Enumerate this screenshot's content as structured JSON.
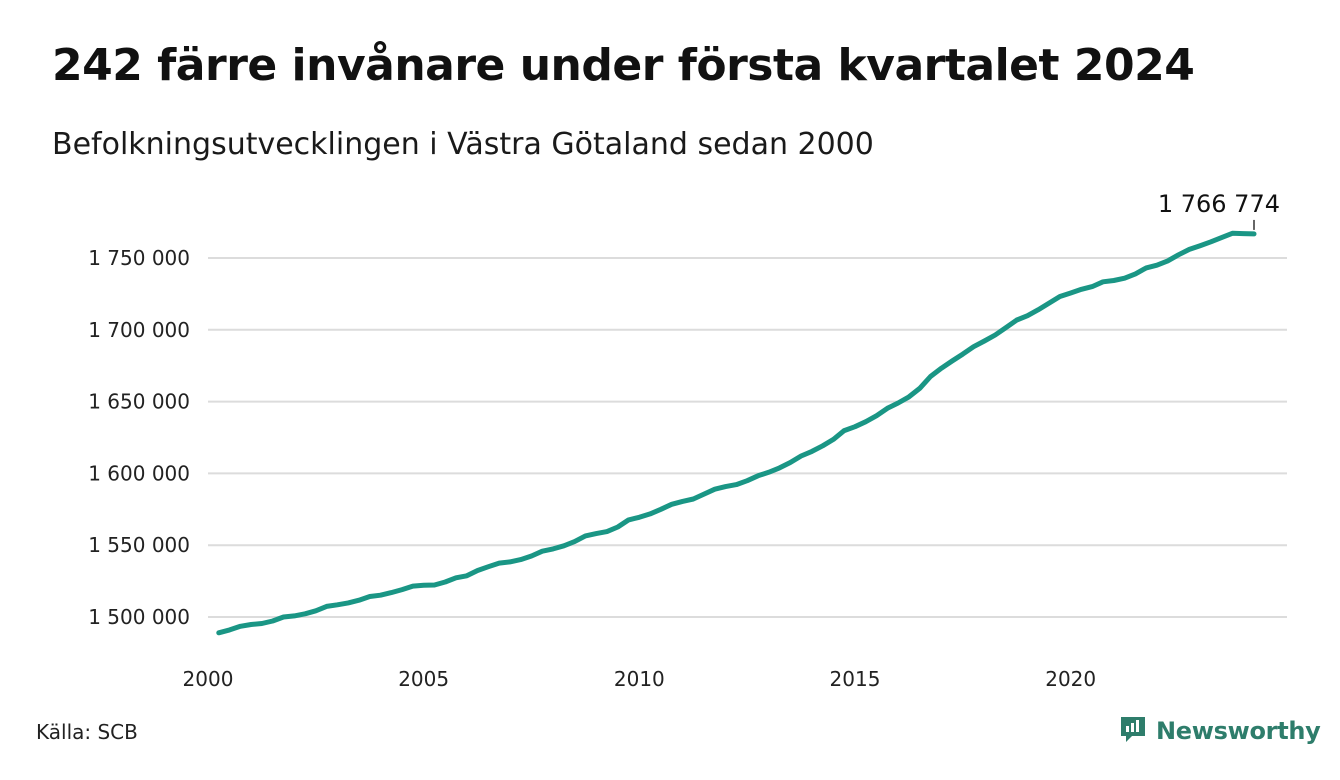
{
  "title": "242 färre invånare under första kvartalet 2024",
  "subtitle": "Befolkningsutvecklingen i Västra Götaland sedan 2000",
  "source": "Källa: SCB",
  "brand": {
    "name": "Newsworthy",
    "icon": "newsworthy-logo-icon",
    "color": "#2e7d6b"
  },
  "chart_data": {
    "type": "line",
    "title": "242 färre invånare under första kvartalet 2024",
    "subtitle": "Befolkningsutvecklingen i Västra Götaland sedan 2000",
    "xlabel": "",
    "ylabel": "",
    "xlim": [
      2000,
      2024.5
    ],
    "ylim": [
      1485000,
      1775000
    ],
    "x_ticks": [
      2000,
      2005,
      2010,
      2015,
      2020
    ],
    "x_tick_labels": [
      "2000",
      "2005",
      "2010",
      "2015",
      "2020"
    ],
    "y_ticks": [
      1500000,
      1550000,
      1600000,
      1650000,
      1700000,
      1750000
    ],
    "y_tick_labels": [
      "1 500 000",
      "1 550 000",
      "1 600 000",
      "1 650 000",
      "1 700 000",
      "1 750 000"
    ],
    "grid": "horizontal",
    "line_color": "#1a9685",
    "end_label": "1 766 774",
    "series": [
      {
        "x": [
          2000.25,
          2000.5,
          2000.75,
          2001.0,
          2001.25,
          2001.5,
          2001.75,
          2002.0,
          2002.25,
          2002.5,
          2002.75,
          2003.0,
          2003.25,
          2003.5,
          2003.75,
          2004.0,
          2004.25,
          2004.5,
          2004.75,
          2005.0,
          2005.25,
          2005.5,
          2005.75,
          2006.0,
          2006.25,
          2006.5,
          2006.75,
          2007.0,
          2007.25,
          2007.5,
          2007.75,
          2008.0,
          2008.25,
          2008.5,
          2008.75,
          2009.0,
          2009.25,
          2009.5,
          2009.75,
          2010.0,
          2010.25,
          2010.5,
          2010.75,
          2011.0,
          2011.25,
          2011.5,
          2011.75,
          2012.0,
          2012.25,
          2012.5,
          2012.75,
          2013.0,
          2013.25,
          2013.5,
          2013.75,
          2014.0,
          2014.25,
          2014.5,
          2014.75,
          2015.0,
          2015.25,
          2015.5,
          2015.75,
          2016.0,
          2016.25,
          2016.5,
          2016.75,
          2017.0,
          2017.25,
          2017.5,
          2017.75,
          2018.0,
          2018.25,
          2018.5,
          2018.75,
          2019.0,
          2019.25,
          2019.5,
          2019.75,
          2020.0,
          2020.25,
          2020.5,
          2020.75,
          2021.0,
          2021.25,
          2021.5,
          2021.75,
          2022.0,
          2022.25,
          2022.5,
          2022.75,
          2023.0,
          2023.25,
          2023.5,
          2023.75,
          2024.0,
          2024.25
        ],
        "values": [
          1489000,
          1491000,
          1493500,
          1494800,
          1495500,
          1497200,
          1500000,
          1500800,
          1502200,
          1504300,
          1507400,
          1508500,
          1509800,
          1511700,
          1514300,
          1515200,
          1517000,
          1519100,
          1521500,
          1522100,
          1522300,
          1524400,
          1527300,
          1528700,
          1532400,
          1535000,
          1537500,
          1538400,
          1540000,
          1542500,
          1545800,
          1547400,
          1549600,
          1552500,
          1556500,
          1558100,
          1559500,
          1562700,
          1567600,
          1569400,
          1571800,
          1575000,
          1578500,
          1580500,
          1582200,
          1585600,
          1589000,
          1590800,
          1592200,
          1594900,
          1598300,
          1600800,
          1603800,
          1607600,
          1612100,
          1615300,
          1619200,
          1623700,
          1629800,
          1632500,
          1636000,
          1640200,
          1645300,
          1649000,
          1653300,
          1659200,
          1667500,
          1673200,
          1678300,
          1683100,
          1688200,
          1692200,
          1696400,
          1701500,
          1706800,
          1709800,
          1714000,
          1718600,
          1723200,
          1725600,
          1728200,
          1730100,
          1733400,
          1734300,
          1735900,
          1738900,
          1743100,
          1745000,
          1748000,
          1752200,
          1756000,
          1758600,
          1761300,
          1764200,
          1767200,
          1767016,
          1766774
        ]
      }
    ]
  }
}
